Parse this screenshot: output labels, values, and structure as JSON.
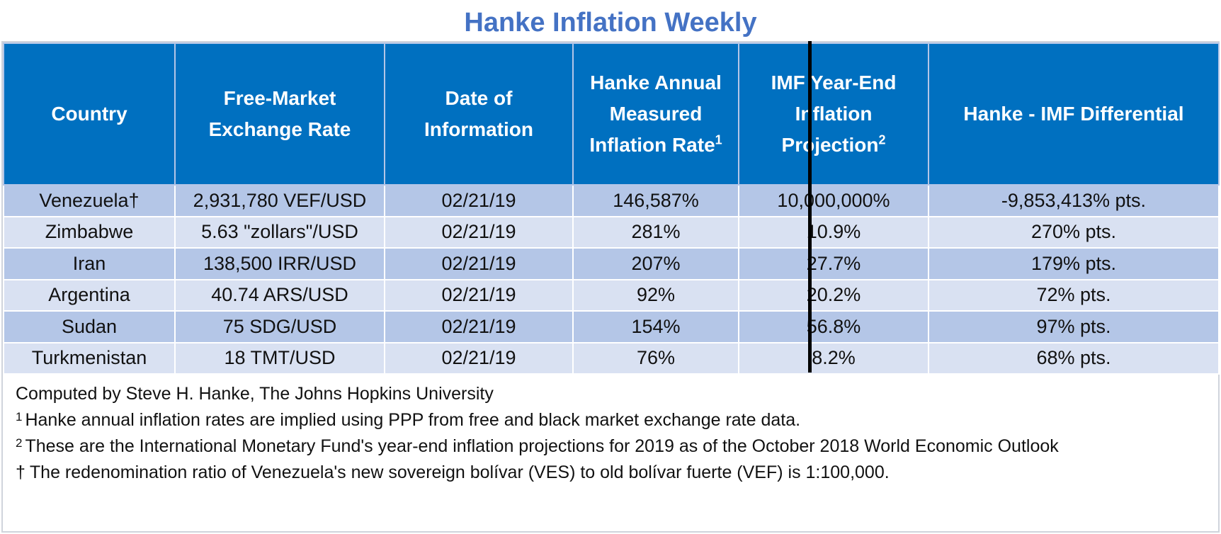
{
  "title": "Hanke Inflation Weekly",
  "chart_data": {
    "type": "table",
    "columns": [
      {
        "label": "Country",
        "sup": ""
      },
      {
        "label": "Free-Market Exchange Rate",
        "sup": ""
      },
      {
        "label": "Date of Information",
        "sup": ""
      },
      {
        "label": "Hanke Annual Measured Inflation Rate",
        "sup": "1"
      },
      {
        "label": "IMF Year-End Inflation Projection",
        "sup": "2"
      },
      {
        "label": "Hanke - IMF Differential",
        "sup": ""
      }
    ],
    "rows": [
      [
        "Venezuela†",
        "2,931,780 VEF/USD",
        "02/21/19",
        "146,587%",
        "10,000,000%",
        "-9,853,413% pts."
      ],
      [
        "Zimbabwe",
        "5.63 \"zollars\"/USD",
        "02/21/19",
        "281%",
        "10.9%",
        "270% pts."
      ],
      [
        "Iran",
        "138,500 IRR/USD",
        "02/21/19",
        "207%",
        "27.7%",
        "179% pts."
      ],
      [
        "Argentina",
        "40.74 ARS/USD",
        "02/21/19",
        "92%",
        "20.2%",
        "72% pts."
      ],
      [
        "Sudan",
        "75 SDG/USD",
        "02/21/19",
        "154%",
        "56.8%",
        "97% pts."
      ],
      [
        "Turkmenistan",
        "18 TMT/USD",
        "02/21/19",
        "76%",
        "8.2%",
        "68% pts."
      ]
    ]
  },
  "notes": [
    {
      "mark": "",
      "text": "Computed by Steve H. Hanke, The Johns Hopkins University"
    },
    {
      "mark": "1",
      "text": "Hanke annual inflation rates are implied using PPP from free and black market exchange rate data."
    },
    {
      "mark": "2",
      "text": "These are the International Monetary Fund's year-end inflation projections for 2019 as of the October 2018 World Economic Outlook"
    },
    {
      "mark": "†",
      "text": "The redenomination ratio of Venezuela's new sovereign bolívar (VES) to old bolívar fuerte (VEF) is 1:100,000."
    }
  ],
  "colors": {
    "title": "#4472C4",
    "header_bg": "#0070C0",
    "row_dark": "#B4C6E7",
    "row_light": "#D9E1F2"
  }
}
